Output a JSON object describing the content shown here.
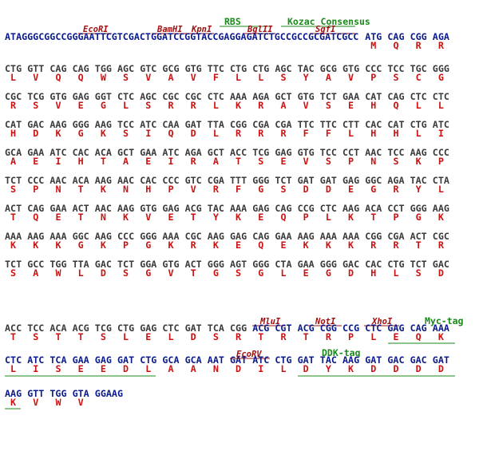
{
  "features": [
    {
      "label": "RBS"
    },
    {
      "label": "Kozac Consensus"
    },
    {
      "label": "EcoRI"
    },
    {
      "label": "BamHI"
    },
    {
      "label": "KpnI"
    },
    {
      "label": "BglII"
    },
    {
      "label": "SgfI"
    },
    {
      "label": "MluI"
    },
    {
      "label": "NotI"
    },
    {
      "label": "XhoI"
    },
    {
      "label": "Myc-tag"
    },
    {
      "label": "EcoRV"
    },
    {
      "label": "DDK-tag"
    }
  ],
  "lines": [
    {
      "prefix": "ATAGGGCGGCCGGGAATTCGTCGACTGGATCCGGTACCGAGGAGATCTGCCGCCGCGATCGCC",
      "codons": [
        "ATG",
        "CAG",
        "CGG",
        "AGA"
      ],
      "aa": [
        "M",
        "Q",
        "R",
        "R"
      ]
    },
    {
      "codons": [
        "CTG",
        "GTT",
        "CAG",
        "CAG",
        "TGG",
        "AGC",
        "GTC",
        "GCG",
        "GTG",
        "TTC",
        "CTG",
        "CTG",
        "AGC",
        "TAC",
        "GCG",
        "GTG",
        "CCC",
        "TCC",
        "TGC",
        "GGG"
      ],
      "aa": [
        "L",
        "V",
        "Q",
        "Q",
        "W",
        "S",
        "V",
        "A",
        "V",
        "F",
        "L",
        "L",
        "S",
        "Y",
        "A",
        "V",
        "P",
        "S",
        "C",
        "G"
      ]
    },
    {
      "codons": [
        "CGC",
        "TCG",
        "GTG",
        "GAG",
        "GGT",
        "CTC",
        "AGC",
        "CGC",
        "CGC",
        "CTC",
        "AAA",
        "AGA",
        "GCT",
        "GTG",
        "TCT",
        "GAA",
        "CAT",
        "CAG",
        "CTC",
        "CTC"
      ],
      "aa": [
        "R",
        "S",
        "V",
        "E",
        "G",
        "L",
        "S",
        "R",
        "R",
        "L",
        "K",
        "R",
        "A",
        "V",
        "S",
        "E",
        "H",
        "Q",
        "L",
        "L"
      ]
    },
    {
      "codons": [
        "CAT",
        "GAC",
        "AAG",
        "GGG",
        "AAG",
        "TCC",
        "ATC",
        "CAA",
        "GAT",
        "TTA",
        "CGG",
        "CGA",
        "CGA",
        "TTC",
        "TTC",
        "CTT",
        "CAC",
        "CAT",
        "CTG",
        "ATC"
      ],
      "aa": [
        "H",
        "D",
        "K",
        "G",
        "K",
        "S",
        "I",
        "Q",
        "D",
        "L",
        "R",
        "R",
        "R",
        "F",
        "F",
        "L",
        "H",
        "H",
        "L",
        "I"
      ]
    },
    {
      "codons": [
        "GCA",
        "GAA",
        "ATC",
        "CAC",
        "ACA",
        "GCT",
        "GAA",
        "ATC",
        "AGA",
        "GCT",
        "ACC",
        "TCG",
        "GAG",
        "GTG",
        "TCC",
        "CCT",
        "AAC",
        "TCC",
        "AAG",
        "CCC"
      ],
      "aa": [
        "A",
        "E",
        "I",
        "H",
        "T",
        "A",
        "E",
        "I",
        "R",
        "A",
        "T",
        "S",
        "E",
        "V",
        "S",
        "P",
        "N",
        "S",
        "K",
        "P"
      ]
    },
    {
      "codons": [
        "TCT",
        "CCC",
        "AAC",
        "ACA",
        "AAG",
        "AAC",
        "CAC",
        "CCC",
        "GTC",
        "CGA",
        "TTT",
        "GGG",
        "TCT",
        "GAT",
        "GAT",
        "GAG",
        "GGC",
        "AGA",
        "TAC",
        "CTA"
      ],
      "aa": [
        "S",
        "P",
        "N",
        "T",
        "K",
        "N",
        "H",
        "P",
        "V",
        "R",
        "F",
        "G",
        "S",
        "D",
        "D",
        "E",
        "G",
        "R",
        "Y",
        "L"
      ]
    },
    {
      "codons": [
        "ACT",
        "CAG",
        "GAA",
        "ACT",
        "AAC",
        "AAG",
        "GTG",
        "GAG",
        "ACG",
        "TAC",
        "AAA",
        "GAG",
        "CAG",
        "CCG",
        "CTC",
        "AAG",
        "ACA",
        "CCT",
        "GGG",
        "AAG"
      ],
      "aa": [
        "T",
        "Q",
        "E",
        "T",
        "N",
        "K",
        "V",
        "E",
        "T",
        "Y",
        "K",
        "E",
        "Q",
        "P",
        "L",
        "K",
        "T",
        "P",
        "G",
        "K"
      ]
    },
    {
      "codons": [
        "AAA",
        "AAG",
        "AAA",
        "GGC",
        "AAG",
        "CCC",
        "GGG",
        "AAA",
        "CGC",
        "AAG",
        "GAG",
        "CAG",
        "GAA",
        "AAG",
        "AAA",
        "AAA",
        "CGG",
        "CGA",
        "ACT",
        "CGC"
      ],
      "aa": [
        "K",
        "K",
        "K",
        "G",
        "K",
        "P",
        "G",
        "K",
        "R",
        "K",
        "E",
        "Q",
        "E",
        "K",
        "K",
        "K",
        "R",
        "R",
        "T",
        "R"
      ]
    },
    {
      "codons": [
        "TCT",
        "GCC",
        "TGG",
        "TTA",
        "GAC",
        "TCT",
        "GGA",
        "GTG",
        "ACT",
        "GGG",
        "AGT",
        "GGG",
        "CTA",
        "GAA",
        "GGG",
        "GAC",
        "CAC",
        "CTG",
        "TCT",
        "GAC"
      ],
      "aa": [
        "S",
        "A",
        "W",
        "L",
        "D",
        "S",
        "G",
        "V",
        "T",
        "G",
        "S",
        "G",
        "L",
        "E",
        "G",
        "D",
        "H",
        "L",
        "S",
        "D"
      ]
    },
    {
      "codons": [
        "ACC",
        "TCC",
        "ACA",
        "ACG",
        "TCG",
        "CTG",
        "GAG",
        "CTC",
        "GAT",
        "TCA",
        "CGG",
        "ACG",
        "CGT",
        "ACG",
        "CGG",
        "CCG",
        "CTC",
        "GAG",
        "CAG",
        "AAA"
      ],
      "aa": [
        "T",
        "S",
        "T",
        "T",
        "S",
        "L",
        "E",
        "L",
        "D",
        "S",
        "R",
        "T",
        "R",
        "T",
        "R",
        "P",
        "L",
        "E",
        "Q",
        "K"
      ]
    },
    {
      "codons": [
        "CTC",
        "ATC",
        "TCA",
        "GAA",
        "GAG",
        "GAT",
        "CTG",
        "GCA",
        "GCA",
        "AAT",
        "GAT",
        "ATC",
        "CTG",
        "GAT",
        "TAC",
        "AAG",
        "GAT",
        "GAC",
        "GAC",
        "GAT"
      ],
      "aa": [
        "L",
        "I",
        "S",
        "E",
        "E",
        "D",
        "L",
        "A",
        "A",
        "N",
        "D",
        "I",
        "L",
        "D",
        "Y",
        "K",
        "D",
        "D",
        "D",
        "D"
      ]
    },
    {
      "codons": [
        "AAG",
        "GTT",
        "TGG",
        "GTA",
        "GGAAG"
      ],
      "aa": [
        "K",
        "V",
        "W",
        "V"
      ]
    }
  ]
}
